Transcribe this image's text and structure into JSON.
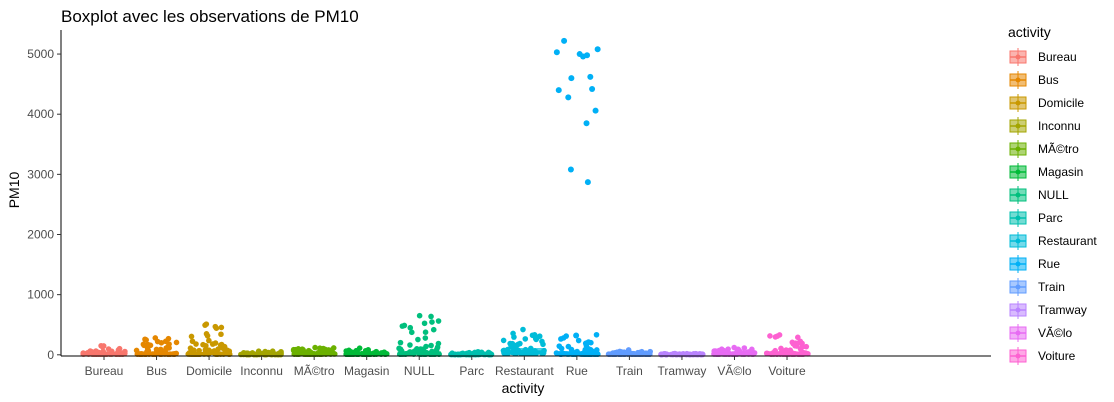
{
  "chart_data": {
    "type": "boxplot",
    "title": "Boxplot avec les observations de PM10",
    "xlabel": "activity",
    "ylabel": "PM10",
    "ylim": [
      -20,
      5400
    ],
    "yticks": [
      0,
      1000,
      2000,
      3000,
      4000,
      5000
    ],
    "grid": false,
    "legend": {
      "title": "activity",
      "position": "right"
    },
    "categories": [
      "Bureau",
      "Bus",
      "Domicile",
      "Inconnu",
      "MÃ©tro",
      "Magasin",
      "NULL",
      "Parc",
      "Restaurant",
      "Rue",
      "Train",
      "Tramway",
      "VÃ©lo",
      "Voiture"
    ],
    "colors": [
      "#F8766D",
      "#E58700",
      "#C99800",
      "#A3A500",
      "#6BB100",
      "#00BA38",
      "#00BF7D",
      "#00C0AF",
      "#00BCD8",
      "#00B0F6",
      "#619CFF",
      "#B983FF",
      "#E76BF3",
      "#FD61D1"
    ],
    "series": [
      {
        "name": "Bureau",
        "box": {
          "q1": 10,
          "median": 20,
          "q3": 40
        },
        "max_value": 150
      },
      {
        "name": "Bus",
        "box": {
          "q1": 10,
          "median": 20,
          "q3": 40
        },
        "max_value": 280
      },
      {
        "name": "Domicile",
        "box": {
          "q1": 10,
          "median": 20,
          "q3": 40
        },
        "max_value": 510
      },
      {
        "name": "Inconnu",
        "box": {
          "q1": 5,
          "median": 15,
          "q3": 30
        },
        "max_value": 60
      },
      {
        "name": "MÃ©tro",
        "box": {
          "q1": 10,
          "median": 25,
          "q3": 45
        },
        "max_value": 120
      },
      {
        "name": "Magasin",
        "box": {
          "q1": 10,
          "median": 20,
          "q3": 40
        },
        "max_value": 110
      },
      {
        "name": "NULL",
        "box": {
          "q1": 10,
          "median": 25,
          "q3": 50
        },
        "max_value": 650
      },
      {
        "name": "Parc",
        "box": {
          "q1": 5,
          "median": 15,
          "q3": 30
        },
        "max_value": 50
      },
      {
        "name": "Restaurant",
        "box": {
          "q1": 30,
          "median": 60,
          "q3": 100
        },
        "max_value": 420
      },
      {
        "name": "Rue",
        "box": {
          "q1": 10,
          "median": 25,
          "q3": 50
        },
        "max_value": 5220,
        "outliers": [
          5220,
          5080,
          5000,
          4980,
          5030,
          4960,
          4620,
          4600,
          4420,
          4400,
          4280,
          4060,
          3850,
          3080,
          2870,
          320
        ]
      },
      {
        "name": "Train",
        "box": {
          "q1": 10,
          "median": 20,
          "q3": 40
        },
        "max_value": 80
      },
      {
        "name": "Tramway",
        "box": {
          "q1": 5,
          "median": 10,
          "q3": 20
        },
        "max_value": 20
      },
      {
        "name": "VÃ©lo",
        "box": {
          "q1": 10,
          "median": 25,
          "q3": 45
        },
        "max_value": 120
      },
      {
        "name": "Voiture",
        "box": {
          "q1": 10,
          "median": 20,
          "q3": 40
        },
        "max_value": 330
      }
    ]
  }
}
